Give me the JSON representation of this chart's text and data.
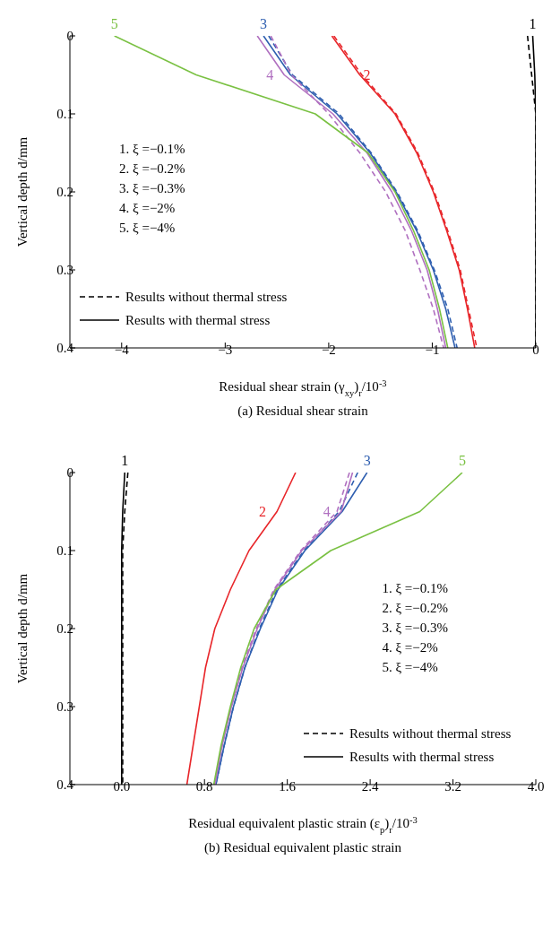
{
  "chart_data": [
    {
      "type": "line",
      "title": "(a)  Residual shear strain",
      "xlabel": "Residual shear strain (γ$_{xy}$)$_{r}$/10$^{-3}$",
      "ylabel": "Vertical depth d/mm",
      "xlim": [
        -4.5,
        0
      ],
      "xticks": [
        {
          "value": -4,
          "label": "−4"
        },
        {
          "value": -3,
          "label": "−3"
        },
        {
          "value": -2,
          "label": "−2"
        },
        {
          "value": -1,
          "label": "−1"
        },
        0
      ],
      "ylim": [
        0.4,
        0
      ],
      "yticks": [
        0,
        0.1,
        0.2,
        0.3,
        0.4
      ],
      "series": [
        {
          "color": "#000000",
          "line_style": "dashed",
          "x": [
            -0.08,
            -0.04,
            0,
            0,
            0
          ],
          "values": [
            0,
            0.05,
            0.1,
            0.2,
            0.4
          ]
        },
        {
          "name": "1",
          "color": "#000000",
          "line_style": "solid",
          "x": [
            -0.03,
            -0.01,
            0,
            0,
            0
          ],
          "values": [
            0,
            0.05,
            0.1,
            0.2,
            0.4
          ]
        },
        {
          "color": "#e8262a",
          "line_style": "dashed",
          "x": [
            -1.95,
            -1.68,
            -1.35,
            -1.14,
            -0.98,
            -0.85,
            -0.73,
            -0.65,
            -0.57
          ],
          "values": [
            0,
            0.05,
            0.1,
            0.15,
            0.2,
            0.25,
            0.3,
            0.35,
            0.4
          ]
        },
        {
          "name": "2",
          "color": "#e8262a",
          "line_style": "solid",
          "x": [
            -1.97,
            -1.7,
            -1.36,
            -1.15,
            -0.99,
            -0.86,
            -0.74,
            -0.66,
            -0.59
          ],
          "values": [
            0,
            0.05,
            0.1,
            0.15,
            0.2,
            0.25,
            0.3,
            0.35,
            0.4
          ]
        },
        {
          "color": "#2f5fb0",
          "line_style": "dashed",
          "x": [
            -2.58,
            -2.35,
            -1.9,
            -1.59,
            -1.34,
            -1.14,
            -0.98,
            -0.85,
            -0.76
          ],
          "values": [
            0,
            0.05,
            0.1,
            0.15,
            0.2,
            0.25,
            0.3,
            0.35,
            0.4
          ]
        },
        {
          "name": "3",
          "color": "#2f5fb0",
          "line_style": "solid",
          "x": [
            -2.63,
            -2.37,
            -1.92,
            -1.6,
            -1.35,
            -1.15,
            -0.99,
            -0.87,
            -0.78
          ],
          "values": [
            0,
            0.05,
            0.1,
            0.15,
            0.2,
            0.25,
            0.3,
            0.35,
            0.4
          ]
        },
        {
          "color": "#b070c0",
          "line_style": "dashed",
          "x": [
            -2.56,
            -2.36,
            -2,
            -1.7,
            -1.45,
            -1.26,
            -1.12,
            -0.99,
            -0.89
          ],
          "values": [
            0,
            0.05,
            0.1,
            0.15,
            0.2,
            0.25,
            0.3,
            0.35,
            0.4
          ]
        },
        {
          "name": "4",
          "color": "#b070c0",
          "line_style": "solid",
          "x": [
            -2.69,
            -2.43,
            -1.96,
            -1.63,
            -1.39,
            -1.2,
            -1.05,
            -0.95,
            -0.87
          ],
          "values": [
            0,
            0.05,
            0.1,
            0.15,
            0.2,
            0.25,
            0.3,
            0.35,
            0.4
          ]
        },
        {
          "name": "5",
          "color": "#7ac143",
          "line_style": "solid",
          "x": [
            -4.07,
            -3.28,
            -2.13,
            -1.62,
            -1.36,
            -1.18,
            -1.03,
            -0.93,
            -0.85
          ],
          "values": [
            0,
            0.05,
            0.1,
            0.15,
            0.2,
            0.25,
            0.3,
            0.35,
            0.4
          ]
        }
      ],
      "annotations": [
        "1. ξ =−0.1%",
        "2. ξ =−0.2%",
        "3. ξ =−0.3%",
        "4. ξ =−2%",
        "5. ξ =−4%",
        "Results without thermal stress",
        "Results with thermal stress"
      ]
    },
    {
      "type": "line",
      "title": "(b)  Residual equivalent plastic strain",
      "xlabel": "Residual equivalent plastic strain (ε$_{p}$)$_{r}$/10$^{-3}$",
      "ylabel": "Vertical depth d/mm",
      "xlim": [
        -0.5,
        4
      ],
      "xticks": [
        {
          "value": 0,
          "label": "0.0"
        },
        0.8,
        1.6,
        2.4,
        3.2,
        {
          "value": 4,
          "label": "4.0"
        }
      ],
      "ylim": [
        0.4,
        0
      ],
      "yticks": [
        0,
        0.1,
        0.2,
        0.3,
        0.4
      ],
      "series": [
        {
          "color": "#000000",
          "line_style": "dashed",
          "x": [
            0.06,
            0.03,
            0.01,
            0.01,
            0.01
          ],
          "values": [
            0,
            0.05,
            0.1,
            0.2,
            0.4
          ]
        },
        {
          "name": "1",
          "color": "#000000",
          "line_style": "solid",
          "x": [
            0.03,
            0.01,
            0,
            0,
            0
          ],
          "values": [
            0,
            0.05,
            0.1,
            0.2,
            0.4
          ]
        },
        {
          "name": "2",
          "color": "#e8262a",
          "line_style": "solid",
          "x": [
            1.68,
            1.5,
            1.23,
            1.05,
            0.9,
            0.81,
            0.75,
            0.69,
            0.63
          ],
          "values": [
            0,
            0.05,
            0.1,
            0.15,
            0.2,
            0.25,
            0.3,
            0.35,
            0.4
          ]
        },
        {
          "color": "#2f5fb0",
          "line_style": "dashed",
          "x": [
            2.28,
            2.1,
            1.76,
            1.5,
            1.33,
            1.19,
            1.08,
            0.99,
            0.91
          ],
          "values": [
            0,
            0.05,
            0.1,
            0.15,
            0.2,
            0.25,
            0.3,
            0.35,
            0.4
          ]
        },
        {
          "name": "3",
          "color": "#2f5fb0",
          "line_style": "solid",
          "x": [
            2.37,
            2.13,
            1.77,
            1.51,
            1.34,
            1.19,
            1.08,
            0.99,
            0.91
          ],
          "values": [
            0,
            0.05,
            0.1,
            0.15,
            0.2,
            0.25,
            0.3,
            0.35,
            0.4
          ]
        },
        {
          "color": "#b070c0",
          "line_style": "dashed",
          "x": [
            2.2,
            2.08,
            1.73,
            1.47,
            1.3,
            1.16,
            1.06,
            0.97,
            0.9
          ],
          "values": [
            0,
            0.05,
            0.1,
            0.15,
            0.2,
            0.25,
            0.3,
            0.35,
            0.4
          ]
        },
        {
          "name": "4",
          "color": "#b070c0",
          "line_style": "solid",
          "x": [
            2.23,
            2.12,
            1.74,
            1.48,
            1.31,
            1.17,
            1.06,
            0.97,
            0.9
          ],
          "values": [
            0,
            0.05,
            0.1,
            0.15,
            0.2,
            0.25,
            0.3,
            0.35,
            0.4
          ]
        },
        {
          "name": "5",
          "color": "#7ac143",
          "line_style": "solid",
          "x": [
            3.29,
            2.88,
            2.02,
            1.49,
            1.28,
            1.15,
            1.05,
            0.96,
            0.89
          ],
          "values": [
            0,
            0.05,
            0.1,
            0.15,
            0.2,
            0.25,
            0.3,
            0.35,
            0.4
          ]
        }
      ],
      "annotations": [
        "1. ξ =−0.1%",
        "2. ξ =−0.2%",
        "3. ξ =−0.3%",
        "4. ξ =−2%",
        "5. ξ =−4%",
        "Results without  thermal stress",
        "Results with  thermal stress"
      ]
    }
  ]
}
